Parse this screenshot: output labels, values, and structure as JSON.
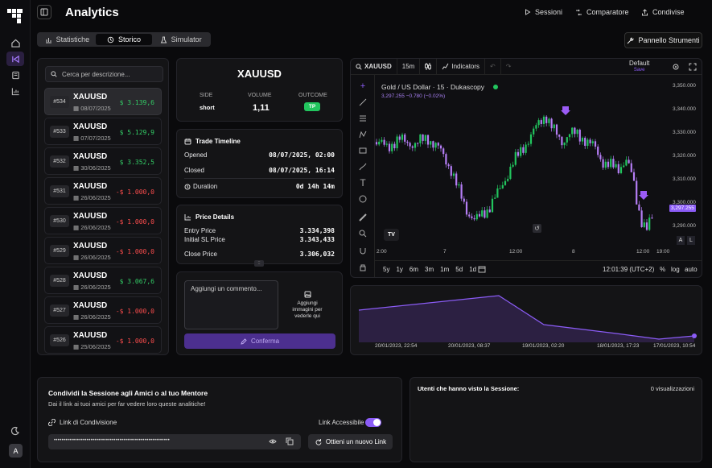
{
  "app": {
    "title": "Analytics",
    "avatar": "A"
  },
  "topnav": {
    "sessions": "Sessioni",
    "comparator": "Comparatore",
    "share": "Condivise"
  },
  "tabs": {
    "stats": "Statistiche",
    "history": "Storico",
    "simulator": "Simulator"
  },
  "tools_button": "Pannello Strumenti",
  "search": {
    "placeholder": "Cerca per descrizione..."
  },
  "trades": [
    {
      "num": "#534",
      "symbol": "XAUUSD",
      "date": "08/07/2025",
      "pnl": "$ 3.139,6",
      "dir": "pos"
    },
    {
      "num": "#533",
      "symbol": "XAUUSD",
      "date": "07/07/2025",
      "pnl": "$ 5.129,9",
      "dir": "pos"
    },
    {
      "num": "#532",
      "symbol": "XAUUSD",
      "date": "30/06/2025",
      "pnl": "$ 3.352,5",
      "dir": "pos"
    },
    {
      "num": "#531",
      "symbol": "XAUUSD",
      "date": "26/06/2025",
      "pnl": "-$ 1.000,0",
      "dir": "neg"
    },
    {
      "num": "#530",
      "symbol": "XAUUSD",
      "date": "26/06/2025",
      "pnl": "-$ 1.000,0",
      "dir": "neg"
    },
    {
      "num": "#529",
      "symbol": "XAUUSD",
      "date": "26/06/2025",
      "pnl": "-$ 1.000,0",
      "dir": "neg"
    },
    {
      "num": "#528",
      "symbol": "XAUUSD",
      "date": "26/06/2025",
      "pnl": "$ 3.067,6",
      "dir": "pos"
    },
    {
      "num": "#527",
      "symbol": "XAUUSD",
      "date": "26/06/2025",
      "pnl": "-$ 1.000,0",
      "dir": "neg"
    },
    {
      "num": "#526",
      "symbol": "XAUUSD",
      "date": "25/06/2025",
      "pnl": "-$ 1.000,0",
      "dir": "neg"
    }
  ],
  "detail": {
    "symbol": "XAUUSD",
    "side_label": "SIDE",
    "side": "short",
    "volume_label": "VOLUME",
    "volume": "1,11",
    "outcome_label": "OUTCOME",
    "outcome": "TP"
  },
  "timeline": {
    "title": "Trade Timeline",
    "opened_label": "Opened",
    "opened": "08/07/2025, 02:00",
    "closed_label": "Closed",
    "closed": "08/07/2025, 16:14",
    "duration_label": "Duration",
    "duration": "0d 14h 14m"
  },
  "price": {
    "title": "Price Details",
    "entry_label": "Entry Price",
    "entry": "3.334,398",
    "sl_label": "Initial SL Price",
    "sl": "3.343,433",
    "close_label": "Close Price",
    "close": "3.306,032"
  },
  "comment": {
    "placeholder": "Aggiungi un commento...",
    "image_hint": "Aggiungi immagini per vederle qui",
    "confirm": "Conferma"
  },
  "tv": {
    "symbol": "XAUUSD",
    "interval": "15m",
    "indicators": "Indicators",
    "layout": "Default",
    "layout_sub": "Save",
    "legend_title": "Gold / US Dollar · 15 · Dukascopy",
    "legend_values": "3,297.255  −0.780 (−0.02%)",
    "price_tag": "3,297.255",
    "prices": [
      "3,350.000",
      "3,340.000",
      "3,330.000",
      "3,320.000",
      "3,310.000",
      "3,300.000",
      "3,290.000"
    ],
    "times": [
      "2:00",
      "7",
      "12:00",
      "8",
      "12:00",
      "19:00"
    ],
    "ranges": [
      "5y",
      "1y",
      "6m",
      "3m",
      "1m",
      "5d",
      "1d"
    ],
    "clock": "12:01:39 (UTC+2)",
    "pct": "%",
    "log": "log",
    "auto": "auto",
    "a_btn": "A",
    "l_btn": "L",
    "tv_logo": "TV"
  },
  "equity": {
    "dates": [
      "20/01/2023, 22:54",
      "20/01/2023, 08:37",
      "19/01/2023, 02:20",
      "18/01/2023, 17:23",
      "17/01/2023, 10:54"
    ],
    "color": "#8b5cf6"
  },
  "share": {
    "title": "Condividi la Sessione agli Amici o al tuo Mentore",
    "subtitle": "Dai il link ai tuoi amici per far vedere loro queste analitiche!",
    "link_label": "Link di Condivisione",
    "accessible_label": "Link Accessibile",
    "link_value": "••••••••••••••••••••••••••••••••••••••••••••••••••••••••••••",
    "new_link": "Ottieni un nuovo Link"
  },
  "viewers": {
    "title": "Utenti che hanno visto la Sessione:",
    "count": "0 visualizzazioni"
  }
}
